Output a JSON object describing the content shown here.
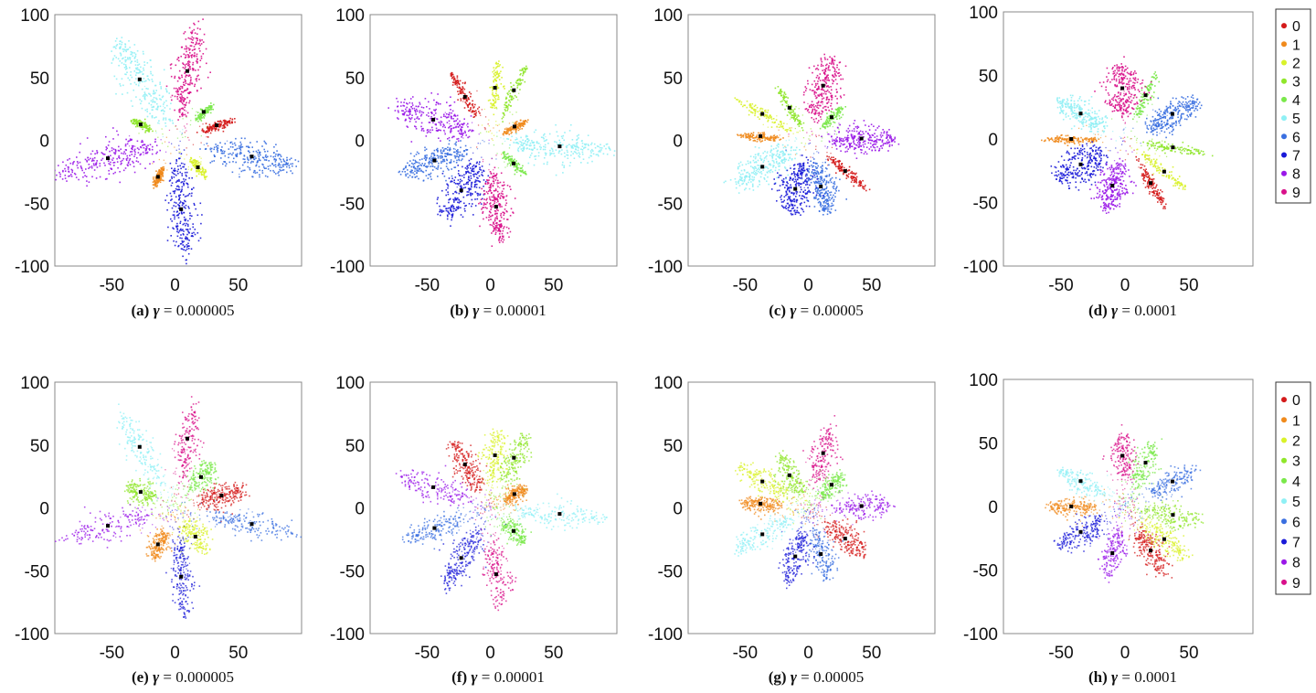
{
  "chart_data": [
    {
      "id": "a",
      "type": "scatter",
      "caption_prefix": "(a)",
      "caption_var": "γ",
      "caption_value": "= 0.000005",
      "xlim": [
        -100,
        100
      ],
      "ylim": [
        -100,
        100
      ],
      "xticks": [
        -50,
        0,
        50
      ],
      "yticks": [
        100,
        50,
        0,
        -50,
        -100
      ],
      "xlim_view": [
        -95,
        100
      ],
      "clusters": [
        {
          "label": "0",
          "angle": 20,
          "dist": 35,
          "len": 24,
          "width": 2.5,
          "density": 0.5
        },
        {
          "label": "1",
          "angle": -115,
          "dist": 32,
          "len": 14,
          "width": 2,
          "density": 0.5
        },
        {
          "label": "2",
          "angle": -50,
          "dist": 28,
          "len": 18,
          "width": 2.2,
          "density": 0.4
        },
        {
          "label": "3",
          "angle": 155,
          "dist": 30,
          "len": 16,
          "width": 2,
          "density": 0.4
        },
        {
          "label": "4",
          "angle": 45,
          "dist": 32,
          "len": 16,
          "width": 2,
          "density": 0.4
        },
        {
          "label": "5",
          "angle": 120,
          "dist": 56,
          "len": 70,
          "width": 9,
          "density": 1
        },
        {
          "label": "6",
          "angle": -12,
          "dist": 62,
          "len": 66,
          "width": 8,
          "density": 1
        },
        {
          "label": "7",
          "angle": -85,
          "dist": 55,
          "len": 68,
          "width": 7,
          "density": 1
        },
        {
          "label": "8",
          "angle": 195,
          "dist": 55,
          "len": 74,
          "width": 9,
          "density": 1
        },
        {
          "label": "9",
          "angle": 80,
          "dist": 56,
          "len": 66,
          "width": 7,
          "density": 1
        }
      ]
    },
    {
      "id": "b",
      "type": "scatter",
      "caption_prefix": "(b)",
      "caption_var": "γ",
      "caption_value": "= 0.00001",
      "xlim": [
        -100,
        100
      ],
      "ylim": [
        -100,
        100
      ],
      "xticks": [
        -50,
        0,
        50
      ],
      "yticks": [
        100,
        50,
        0,
        -50,
        -100
      ],
      "xlim_view": [
        -95,
        100
      ],
      "clusters": [
        {
          "label": "0",
          "angle": 120,
          "dist": 40,
          "len": 42,
          "width": 2.5,
          "density": 0.5
        },
        {
          "label": "1",
          "angle": 30,
          "dist": 22,
          "len": 18,
          "width": 2,
          "density": 0.5
        },
        {
          "label": "2",
          "angle": 85,
          "dist": 42,
          "len": 38,
          "width": 2.5,
          "density": 0.4
        },
        {
          "label": "3",
          "angle": 65,
          "dist": 44,
          "len": 40,
          "width": 2.5,
          "density": 0.4
        },
        {
          "label": "4",
          "angle": -45,
          "dist": 26,
          "len": 22,
          "width": 2.2,
          "density": 0.4
        },
        {
          "label": "5",
          "angle": -5,
          "dist": 55,
          "len": 70,
          "width": 7,
          "density": 1
        },
        {
          "label": "6",
          "angle": 200,
          "dist": 47,
          "len": 50,
          "width": 7,
          "density": 1
        },
        {
          "label": "7",
          "angle": -120,
          "dist": 46,
          "len": 48,
          "width": 9,
          "density": 1
        },
        {
          "label": "8",
          "angle": 160,
          "dist": 48,
          "len": 56,
          "width": 9,
          "density": 1
        },
        {
          "label": "9",
          "angle": -85,
          "dist": 53,
          "len": 52,
          "width": 7,
          "density": 1
        }
      ]
    },
    {
      "id": "c",
      "type": "scatter",
      "caption_prefix": "(c)",
      "caption_var": "γ",
      "caption_value": "= 0.00005",
      "xlim": [
        -100,
        100
      ],
      "ylim": [
        -100,
        100
      ],
      "xticks": [
        -50,
        0,
        50
      ],
      "yticks": [
        100,
        50,
        0,
        -50,
        -100
      ],
      "xlim_view": [
        -95,
        100
      ],
      "clusters": [
        {
          "label": "0",
          "angle": -40,
          "dist": 38,
          "len": 36,
          "width": 2.5,
          "density": 0.5
        },
        {
          "label": "1",
          "angle": 175,
          "dist": 38,
          "len": 30,
          "width": 2,
          "density": 0.5
        },
        {
          "label": "2",
          "angle": 150,
          "dist": 42,
          "len": 44,
          "width": 2.5,
          "density": 0.4
        },
        {
          "label": "3",
          "angle": 120,
          "dist": 30,
          "len": 34,
          "width": 2.3,
          "density": 0.4
        },
        {
          "label": "4",
          "angle": 45,
          "dist": 26,
          "len": 22,
          "width": 2.2,
          "density": 0.4
        },
        {
          "label": "5",
          "angle": 210,
          "dist": 42,
          "len": 50,
          "width": 8,
          "density": 1
        },
        {
          "label": "6",
          "angle": -75,
          "dist": 38,
          "len": 40,
          "width": 7,
          "density": 1
        },
        {
          "label": "7",
          "angle": -105,
          "dist": 40,
          "len": 40,
          "width": 8,
          "density": 1
        },
        {
          "label": "8",
          "angle": 2,
          "dist": 42,
          "len": 46,
          "width": 7,
          "density": 1
        },
        {
          "label": "9",
          "angle": 75,
          "dist": 45,
          "len": 46,
          "width": 8,
          "density": 1
        }
      ]
    },
    {
      "id": "d",
      "type": "scatter",
      "caption_prefix": "(d)",
      "caption_var": "γ",
      "caption_value": "= 0.0001",
      "xlim": [
        -100,
        100
      ],
      "ylim": [
        -100,
        100
      ],
      "xticks": [
        -50,
        0,
        50
      ],
      "yticks": [
        100,
        50,
        0,
        -50,
        -100
      ],
      "xlim_view": [
        -95,
        100
      ],
      "clusters": [
        {
          "label": "0",
          "angle": -60,
          "dist": 40,
          "len": 38,
          "width": 2.5,
          "density": 0.5
        },
        {
          "label": "1",
          "angle": 180,
          "dist": 42,
          "len": 38,
          "width": 2,
          "density": 0.5
        },
        {
          "label": "2",
          "angle": -40,
          "dist": 40,
          "len": 40,
          "width": 2.5,
          "density": 0.4
        },
        {
          "label": "3",
          "angle": -10,
          "dist": 38,
          "len": 44,
          "width": 2.5,
          "density": 0.4
        },
        {
          "label": "4",
          "angle": 65,
          "dist": 38,
          "len": 36,
          "width": 2.5,
          "density": 0.4
        },
        {
          "label": "5",
          "angle": 150,
          "dist": 40,
          "len": 38,
          "width": 6,
          "density": 0.9
        },
        {
          "label": "6",
          "angle": 28,
          "dist": 42,
          "len": 40,
          "width": 7,
          "density": 1
        },
        {
          "label": "7",
          "angle": 210,
          "dist": 40,
          "len": 40,
          "width": 9,
          "density": 1
        },
        {
          "label": "8",
          "angle": -105,
          "dist": 38,
          "len": 36,
          "width": 8,
          "density": 1
        },
        {
          "label": "9",
          "angle": 93,
          "dist": 40,
          "len": 36,
          "width": 9,
          "density": 1
        }
      ]
    },
    {
      "id": "e",
      "type": "scatter",
      "caption_prefix": "(e)",
      "caption_var": "γ",
      "caption_value": "= 0.000005",
      "xlim": [
        -100,
        100
      ],
      "ylim": [
        -100,
        100
      ],
      "xticks": [
        -50,
        0,
        50
      ],
      "yticks": [
        100,
        50,
        0,
        -50,
        -100
      ],
      "xlim_view": [
        -95,
        100
      ],
      "clusters": [
        {
          "label": "0",
          "angle": 15,
          "dist": 38,
          "len": 34,
          "width": 6,
          "density": 0.8
        },
        {
          "label": "1",
          "angle": -115,
          "dist": 32,
          "len": 22,
          "width": 5,
          "density": 0.7
        },
        {
          "label": "2",
          "angle": -55,
          "dist": 28,
          "len": 28,
          "width": 6,
          "density": 0.6
        },
        {
          "label": "3",
          "angle": 155,
          "dist": 30,
          "len": 22,
          "width": 6,
          "density": 0.6
        },
        {
          "label": "4",
          "angle": 50,
          "dist": 32,
          "len": 28,
          "width": 6,
          "density": 0.6
        },
        {
          "label": "5",
          "angle": 120,
          "dist": 56,
          "len": 60,
          "width": 6,
          "density": 0.6
        },
        {
          "label": "6",
          "angle": -12,
          "dist": 62,
          "len": 60,
          "width": 6,
          "density": 0.6
        },
        {
          "label": "7",
          "angle": -85,
          "dist": 55,
          "len": 60,
          "width": 5,
          "density": 0.7
        },
        {
          "label": "8",
          "angle": 195,
          "dist": 55,
          "len": 66,
          "width": 7,
          "density": 0.6
        },
        {
          "label": "9",
          "angle": 80,
          "dist": 56,
          "len": 56,
          "width": 5,
          "density": 0.6
        }
      ]
    },
    {
      "id": "f",
      "type": "scatter",
      "caption_prefix": "(f)",
      "caption_var": "γ",
      "caption_value": "= 0.00001",
      "xlim": [
        -100,
        100
      ],
      "ylim": [
        -100,
        100
      ],
      "xticks": [
        -50,
        0,
        50
      ],
      "yticks": [
        100,
        50,
        0,
        -50,
        -100
      ],
      "xlim_view": [
        -95,
        100
      ],
      "clusters": [
        {
          "label": "0",
          "angle": 120,
          "dist": 40,
          "len": 40,
          "width": 6,
          "density": 0.8
        },
        {
          "label": "1",
          "angle": 30,
          "dist": 22,
          "len": 18,
          "width": 4,
          "density": 0.7
        },
        {
          "label": "2",
          "angle": 85,
          "dist": 42,
          "len": 38,
          "width": 6,
          "density": 0.6
        },
        {
          "label": "3",
          "angle": 65,
          "dist": 44,
          "len": 38,
          "width": 6,
          "density": 0.6
        },
        {
          "label": "4",
          "angle": -45,
          "dist": 26,
          "len": 22,
          "width": 5,
          "density": 0.6
        },
        {
          "label": "5",
          "angle": -5,
          "dist": 55,
          "len": 62,
          "width": 6,
          "density": 0.6
        },
        {
          "label": "6",
          "angle": 200,
          "dist": 47,
          "len": 46,
          "width": 6,
          "density": 0.6
        },
        {
          "label": "7",
          "angle": -120,
          "dist": 46,
          "len": 46,
          "width": 7,
          "density": 0.8
        },
        {
          "label": "8",
          "angle": 160,
          "dist": 48,
          "len": 52,
          "width": 7,
          "density": 0.6
        },
        {
          "label": "9",
          "angle": -85,
          "dist": 53,
          "len": 50,
          "width": 6,
          "density": 0.6
        }
      ]
    },
    {
      "id": "g",
      "type": "scatter",
      "caption_prefix": "(g)",
      "caption_var": "γ",
      "caption_value": "= 0.00005",
      "xlim": [
        -100,
        100
      ],
      "ylim": [
        -100,
        100
      ],
      "xticks": [
        -50,
        0,
        50
      ],
      "yticks": [
        100,
        50,
        0,
        -50,
        -100
      ],
      "xlim_view": [
        -95,
        100
      ],
      "clusters": [
        {
          "label": "0",
          "angle": -40,
          "dist": 38,
          "len": 36,
          "width": 6,
          "density": 0.8
        },
        {
          "label": "1",
          "angle": 175,
          "dist": 38,
          "len": 28,
          "width": 4,
          "density": 0.7
        },
        {
          "label": "2",
          "angle": 150,
          "dist": 42,
          "len": 42,
          "width": 6,
          "density": 0.6
        },
        {
          "label": "3",
          "angle": 120,
          "dist": 30,
          "len": 32,
          "width": 6,
          "density": 0.6
        },
        {
          "label": "4",
          "angle": 45,
          "dist": 26,
          "len": 22,
          "width": 5,
          "density": 0.6
        },
        {
          "label": "5",
          "angle": 210,
          "dist": 42,
          "len": 46,
          "width": 6,
          "density": 0.6
        },
        {
          "label": "6",
          "angle": -75,
          "dist": 38,
          "len": 38,
          "width": 6,
          "density": 0.6
        },
        {
          "label": "7",
          "angle": -105,
          "dist": 40,
          "len": 38,
          "width": 6,
          "density": 0.7
        },
        {
          "label": "8",
          "angle": 2,
          "dist": 42,
          "len": 42,
          "width": 6,
          "density": 0.6
        },
        {
          "label": "9",
          "angle": 75,
          "dist": 45,
          "len": 42,
          "width": 6,
          "density": 0.6
        }
      ]
    },
    {
      "id": "h",
      "type": "scatter",
      "caption_prefix": "(h)",
      "caption_var": "γ",
      "caption_value": "= 0.0001",
      "xlim": [
        -100,
        100
      ],
      "ylim": [
        -100,
        100
      ],
      "xticks": [
        -50,
        0,
        50
      ],
      "yticks": [
        100,
        50,
        0,
        -50,
        -100
      ],
      "xlim_view": [
        -95,
        100
      ],
      "clusters": [
        {
          "label": "0",
          "angle": -60,
          "dist": 40,
          "len": 38,
          "width": 6,
          "density": 0.8
        },
        {
          "label": "1",
          "angle": 180,
          "dist": 42,
          "len": 34,
          "width": 4,
          "density": 0.7
        },
        {
          "label": "2",
          "angle": -40,
          "dist": 40,
          "len": 40,
          "width": 6,
          "density": 0.6
        },
        {
          "label": "3",
          "angle": -10,
          "dist": 38,
          "len": 42,
          "width": 6,
          "density": 0.6
        },
        {
          "label": "4",
          "angle": 65,
          "dist": 38,
          "len": 34,
          "width": 6,
          "density": 0.6
        },
        {
          "label": "5",
          "angle": 150,
          "dist": 40,
          "len": 34,
          "width": 5,
          "density": 0.6
        },
        {
          "label": "6",
          "angle": 28,
          "dist": 42,
          "len": 36,
          "width": 6,
          "density": 0.6
        },
        {
          "label": "7",
          "angle": 210,
          "dist": 40,
          "len": 36,
          "width": 7,
          "density": 0.7
        },
        {
          "label": "8",
          "angle": -105,
          "dist": 38,
          "len": 34,
          "width": 6,
          "density": 0.6
        },
        {
          "label": "9",
          "angle": 93,
          "dist": 40,
          "len": 32,
          "width": 6,
          "density": 0.6
        }
      ]
    }
  ],
  "legend": {
    "entries": [
      "0",
      "1",
      "2",
      "3",
      "4",
      "5",
      "6",
      "7",
      "8",
      "9"
    ],
    "colors": [
      "#d41a1a",
      "#f08a1c",
      "#d9f22a",
      "#8fe62a",
      "#7ae84a",
      "#8ff0f5",
      "#3a6fe0",
      "#1a1ad8",
      "#9a18e8",
      "#d8108a"
    ],
    "placement": "right"
  }
}
